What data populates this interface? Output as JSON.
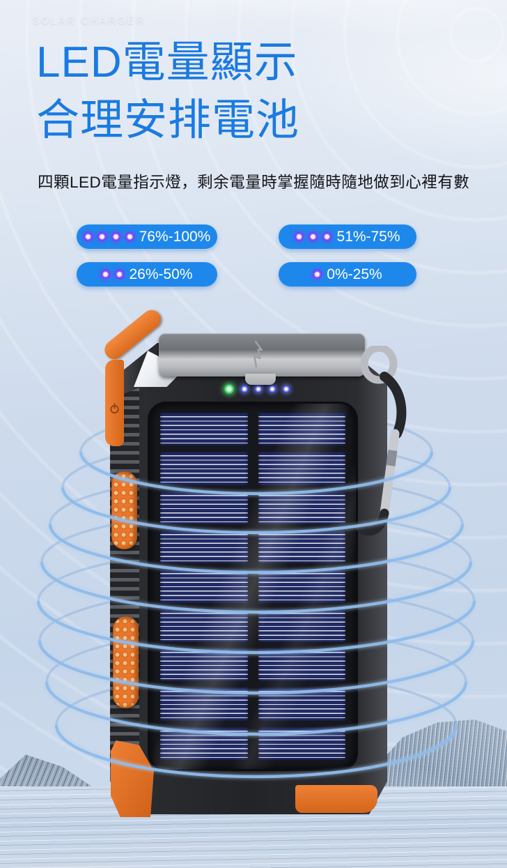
{
  "page": {
    "brand": "SOLAR CHARGER",
    "headline_line1": "LED電量顯示",
    "headline_line2": "合理安排電池",
    "description": "四顆LED電量指示燈，剩余電量時掌握隨時隨地做到心裡有數"
  },
  "badges": [
    {
      "label": "76%-100%",
      "dots": 4
    },
    {
      "label": "51%-75%",
      "dots": 3
    },
    {
      "label": "26%-50%",
      "dots": 2
    },
    {
      "label": "0%-25%",
      "dots": 1
    }
  ],
  "product": {
    "type": "solar power bank",
    "status_leds": {
      "green": 1,
      "blue": 4
    },
    "solar_cells": {
      "columns": 2,
      "rows": 9
    }
  },
  "colors": {
    "headline_blue": "#1a7ae2",
    "badge_blue": "#1e87ec",
    "led_dot_violet": "#7c2ff2",
    "device_orange": "#e8762c",
    "solar_cell_navy": "#202a63",
    "indicator_green": "#3fd160",
    "indicator_blue": "#4c57e9",
    "energy_ring_blue": "#8fbbe9"
  }
}
